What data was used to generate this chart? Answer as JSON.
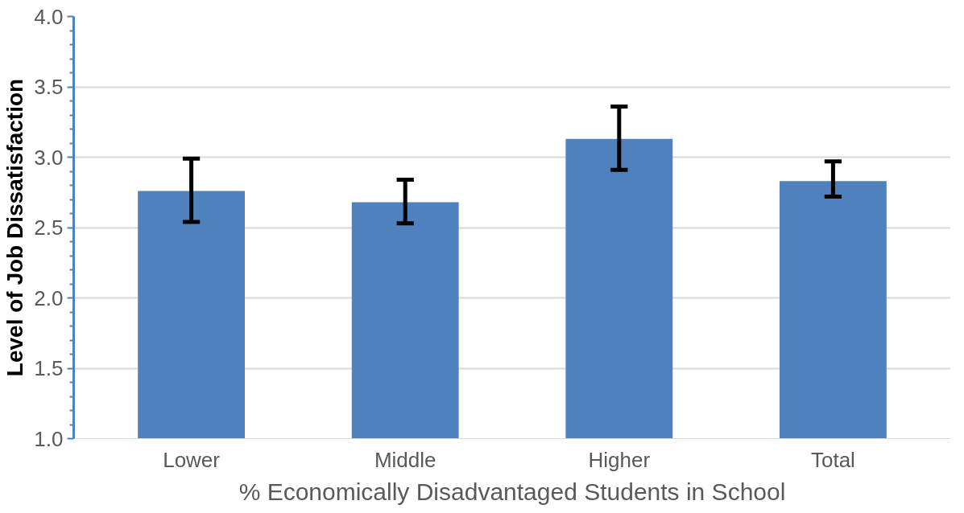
{
  "chart_data": {
    "type": "bar",
    "xlabel": "% Economically Disadvantaged Students in School",
    "ylabel": "Level of Job Dissatisfaction",
    "categories": [
      "Lower",
      "Middle",
      "Higher",
      "Total"
    ],
    "values": [
      2.76,
      2.68,
      3.13,
      2.83
    ],
    "errors": [
      [
        2.54,
        2.99
      ],
      [
        2.53,
        2.84
      ],
      [
        2.91,
        3.36
      ],
      [
        2.72,
        2.97
      ]
    ],
    "color": "#4f81bd",
    "ylim": [
      1.0,
      4.0
    ],
    "yticks": [
      {
        "value": 1.0,
        "label": "1.0"
      },
      {
        "value": 1.5,
        "label": "1.5"
      },
      {
        "value": 2.0,
        "label": "2.0"
      },
      {
        "value": 2.5,
        "label": "2.5"
      },
      {
        "value": 3.0,
        "label": "3.0"
      },
      {
        "value": 3.5,
        "label": "3.5"
      },
      {
        "value": 4.0,
        "label": "4.0"
      }
    ],
    "grid": "y"
  }
}
